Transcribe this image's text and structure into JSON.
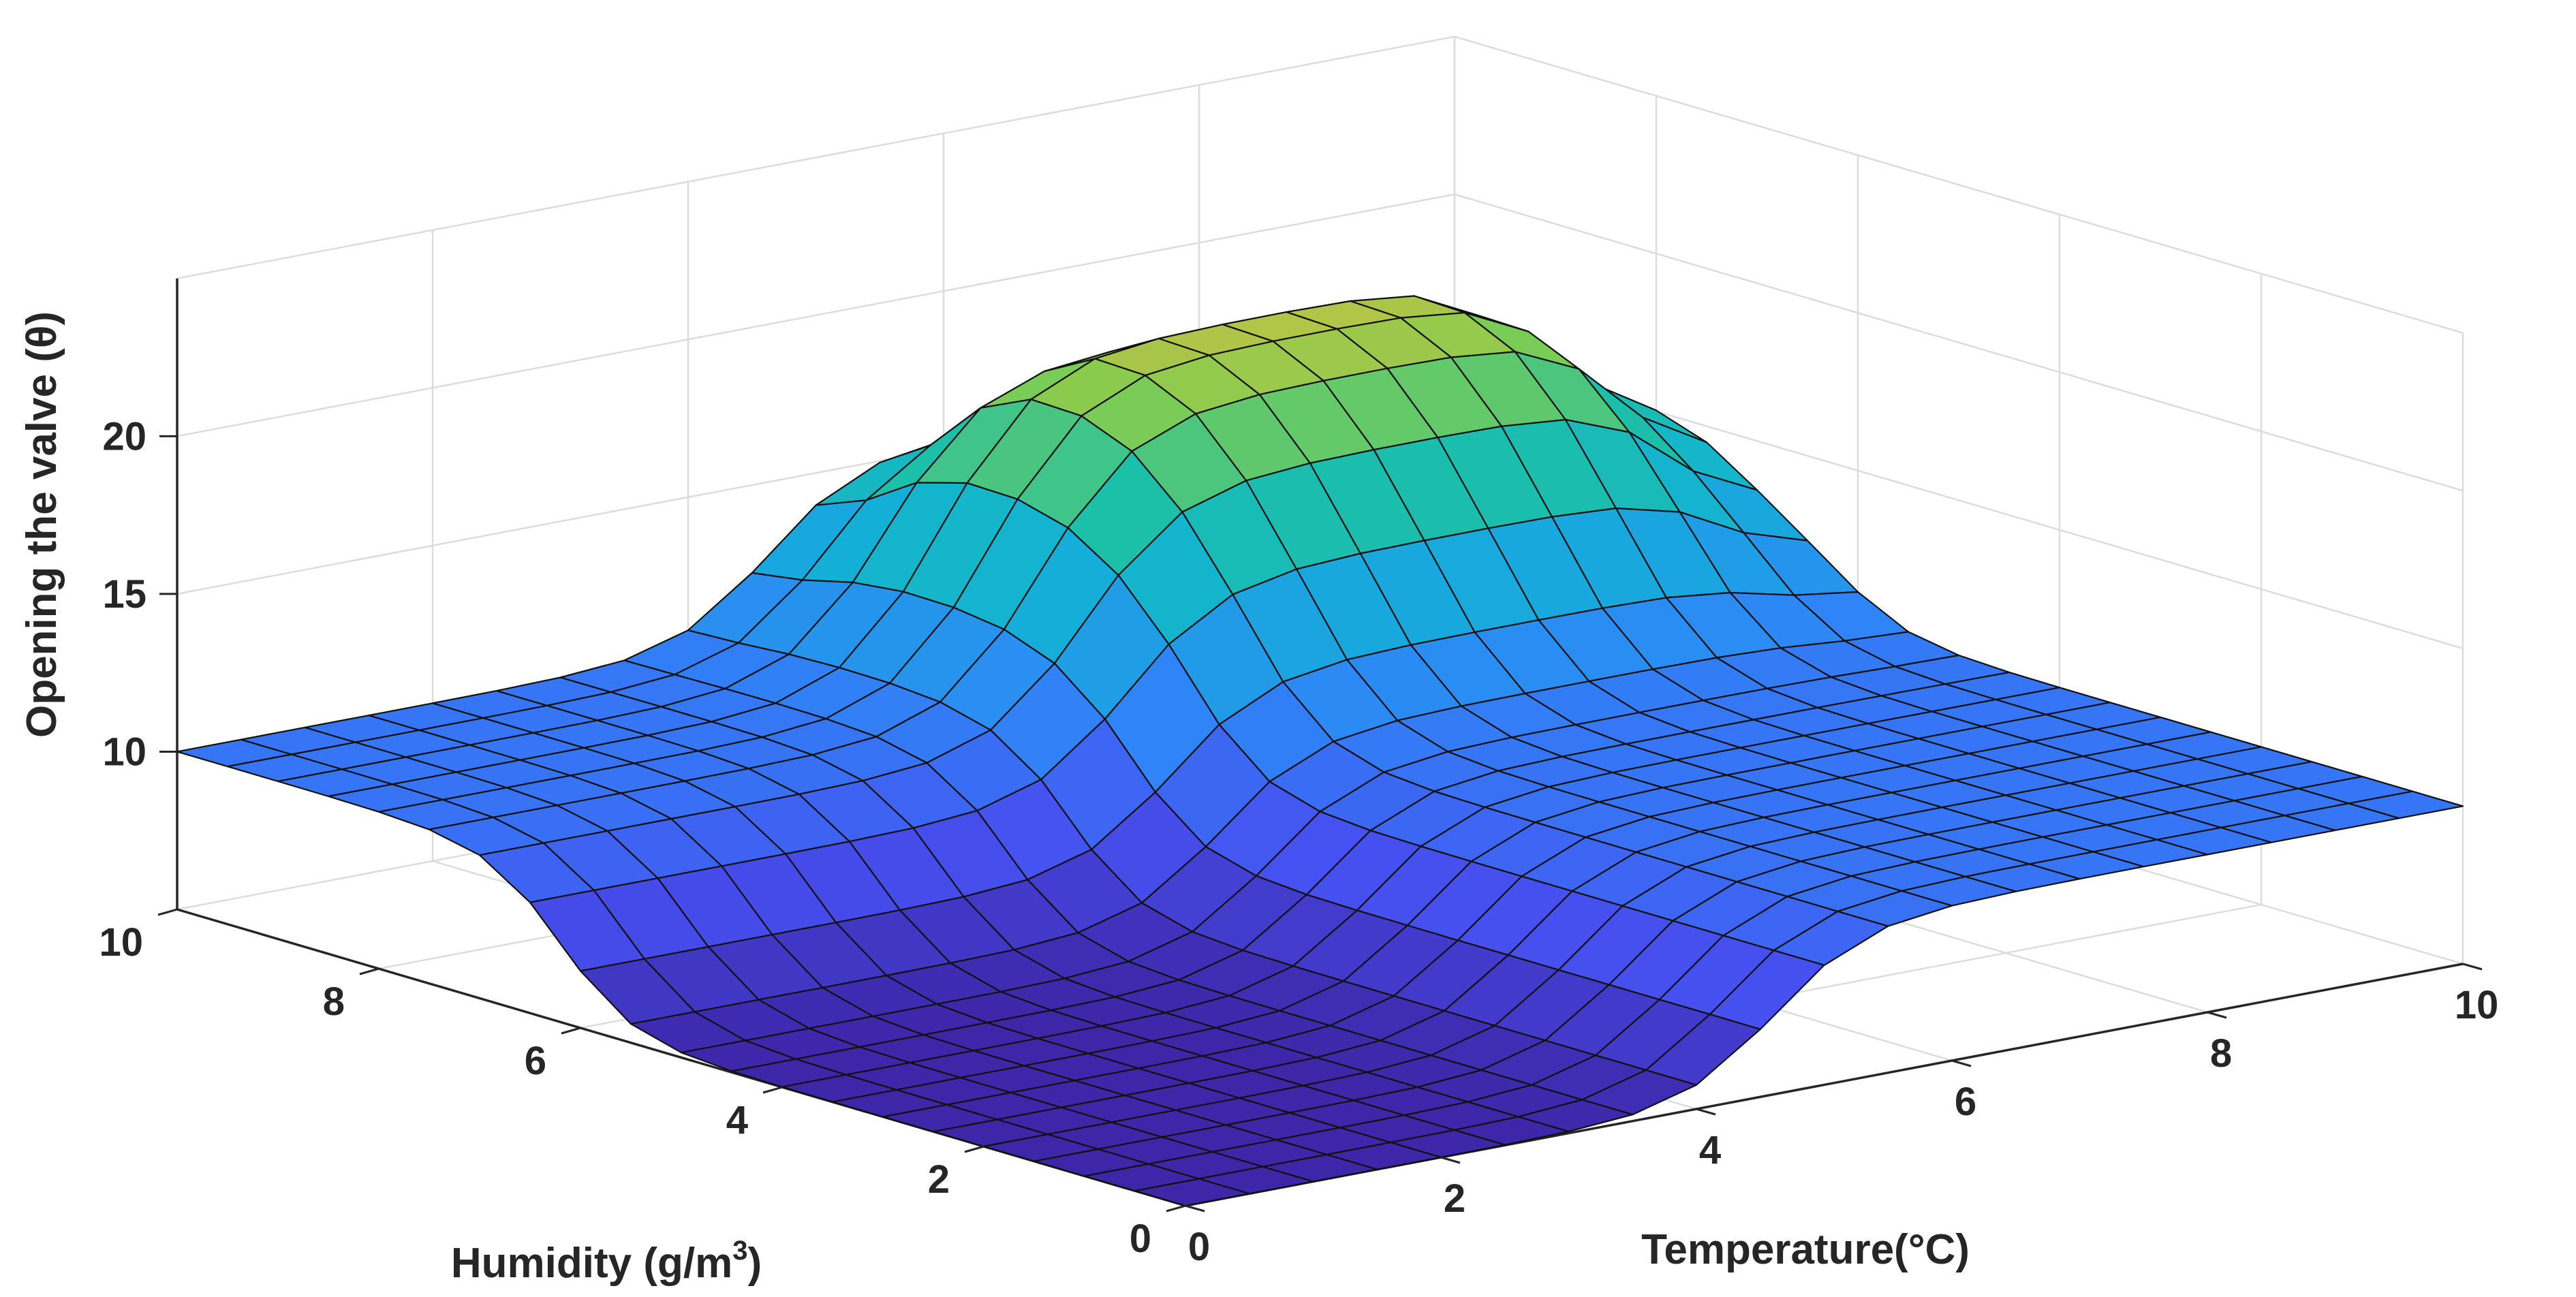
{
  "chart_data": {
    "type": "surface",
    "zlabel": "Opening the valve (θ)",
    "xlabel": "Temperature(°C)",
    "ylabel_main": "Humidity (g/m",
    "ylabel_sup": "3",
    "ylabel_close": ")",
    "xlim": [
      0,
      10
    ],
    "ylim": [
      0,
      10
    ],
    "zlim": [
      5,
      25
    ],
    "xticks": [
      0,
      2,
      4,
      6,
      8,
      10
    ],
    "yticks": [
      0,
      2,
      4,
      6,
      8,
      10
    ],
    "zticks": [
      10,
      15,
      20
    ],
    "zticks_visible_labels": [
      "10",
      "15",
      "20"
    ],
    "grid": true,
    "colormap": "parula",
    "colors": {
      "low": "#3e26a8",
      "mid_blue": "#2e87f7",
      "cyan": "#0fbab4",
      "green": "#7fcd50",
      "orange": "#fbb53a",
      "high": "#f9fb15"
    },
    "grid_x": [
      0,
      0.5,
      1,
      1.5,
      2,
      2.5,
      3,
      3.5,
      4,
      4.5,
      5,
      5.5,
      6,
      6.5,
      7,
      7.5,
      8,
      8.5,
      9,
      9.5,
      10
    ],
    "grid_y": [
      0,
      0.5,
      1,
      1.5,
      2,
      2.5,
      3,
      3.5,
      4,
      4.5,
      5,
      5.5,
      6,
      6.5,
      7,
      7.5,
      8,
      8.5,
      9,
      9.5,
      10
    ],
    "z_description_levels": {
      "cold_dry": 5,
      "cold_humid_far": 15,
      "mid_dry": 10,
      "mid_mid": 15,
      "hot_dry": 15,
      "hot_mid": 20,
      "far_peak": 25
    }
  }
}
